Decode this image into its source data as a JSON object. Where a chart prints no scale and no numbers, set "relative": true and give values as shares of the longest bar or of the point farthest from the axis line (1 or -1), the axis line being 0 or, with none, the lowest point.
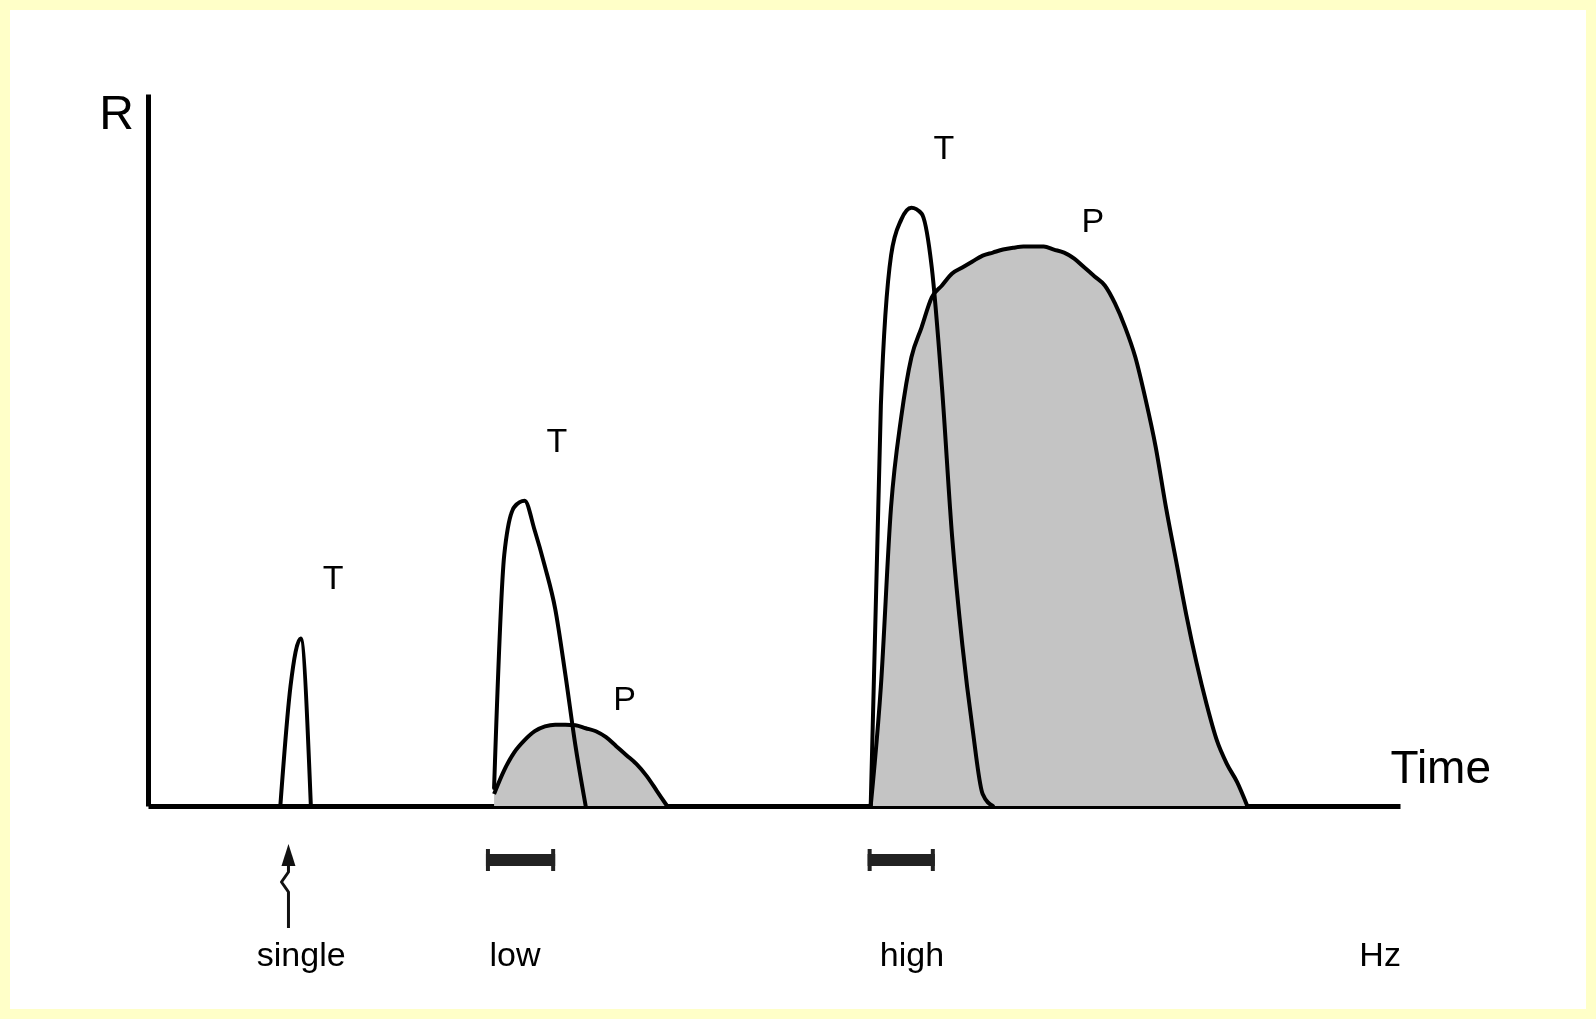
{
  "chart_data": {
    "type": "line",
    "relative": true,
    "xlabel": "Time",
    "ylabel": "R",
    "categories": [
      null,
      null,
      null,
      null,
      null,
      null,
      null,
      null,
      null,
      null,
      null,
      null,
      null,
      null,
      null,
      "single",
      null,
      null,
      null,
      null,
      null,
      null,
      null,
      null,
      null,
      null,
      null,
      null,
      null,
      null,
      null,
      null,
      null,
      null,
      null,
      null,
      "low",
      null,
      null,
      null,
      null,
      null,
      null,
      null,
      null,
      null,
      null,
      null,
      null,
      null,
      null,
      null,
      null,
      null,
      null,
      null,
      null,
      null,
      null,
      null,
      null,
      null,
      null,
      null,
      null,
      null,
      null,
      null,
      null,
      null,
      null,
      null,
      null,
      null,
      null,
      "high",
      null,
      null,
      null,
      null,
      null,
      null,
      null,
      null,
      null,
      null,
      null,
      null,
      null,
      null,
      null,
      null,
      null,
      null,
      null,
      null,
      null,
      null,
      null,
      null,
      null,
      null,
      null,
      null,
      null,
      null,
      null,
      null,
      null,
      null,
      null,
      null,
      null,
      null,
      null,
      null,
      null,
      null,
      null,
      null,
      null,
      "Hz",
      null,
      null
    ],
    "series": [
      {
        "name": "T",
        "type": "line",
        "color": "#000000",
        "values": [
          null,
          null,
          null,
          null,
          null,
          null,
          null,
          null,
          null,
          null,
          null,
          null,
          null,
          0,
          0.2,
          0.28,
          0,
          null,
          null,
          null,
          null,
          null,
          null,
          null,
          null,
          null,
          null,
          null,
          null,
          null,
          null,
          null,
          null,
          null,
          null,
          null,
          null,
          null,
          null,
          null,
          null,
          null,
          null,
          null,
          null,
          null,
          null,
          null,
          null,
          null,
          null,
          null,
          null,
          null,
          null,
          null,
          null,
          null,
          null,
          null,
          null,
          null,
          null,
          null,
          null,
          null,
          null,
          null,
          null,
          null,
          null,
          null,
          null,
          null,
          null,
          null,
          null,
          null,
          null,
          null,
          null,
          null,
          null,
          null,
          null,
          null,
          null,
          null,
          null,
          null,
          null,
          null,
          null,
          null,
          null,
          null,
          null,
          null,
          null,
          null,
          null,
          null,
          null,
          null,
          null,
          null,
          null,
          null,
          null,
          null,
          null,
          null,
          null,
          null,
          null,
          null,
          null,
          null,
          null,
          null,
          null,
          null,
          null,
          null
        ]
      },
      {
        "name": "P",
        "type": "area",
        "color": "#c4c4c4",
        "values": [
          null,
          null,
          null,
          null,
          null,
          null,
          null,
          null,
          null,
          null,
          null,
          null,
          null,
          null,
          null,
          null,
          null,
          null,
          null,
          null,
          null,
          null,
          null,
          null,
          null,
          null,
          null,
          null,
          null,
          null,
          null,
          null,
          null,
          null,
          0.02,
          0.06,
          0.09,
          0.11,
          0.125,
          0.133,
          0.136,
          0.136,
          0.135,
          0.13,
          0.125,
          0.115,
          0.1,
          0.085,
          0.07,
          0.05,
          0.025,
          0,
          null,
          null,
          null,
          null,
          null,
          null,
          null,
          null,
          null,
          null,
          null,
          null,
          null,
          null,
          null,
          null,
          null,
          null,
          null,
          null,
          null,
          null,
          null,
          null,
          null,
          null,
          null,
          null,
          null,
          null,
          null,
          null,
          null,
          null,
          null,
          null,
          null,
          null,
          null,
          null,
          null,
          null,
          null,
          null,
          null,
          null,
          null,
          null,
          null,
          null,
          null,
          null,
          null,
          null,
          null,
          null,
          null,
          null,
          null,
          null,
          null,
          null,
          null,
          null,
          null,
          null,
          null,
          null,
          null,
          null,
          null,
          null
        ]
      },
      {
        "name": "T",
        "type": "line",
        "color": "#000000",
        "values": [
          null,
          null,
          null,
          null,
          null,
          null,
          null,
          null,
          null,
          null,
          null,
          null,
          null,
          null,
          null,
          null,
          null,
          null,
          null,
          null,
          null,
          null,
          null,
          null,
          null,
          null,
          null,
          null,
          null,
          null,
          null,
          null,
          null,
          null,
          0.03,
          0.42,
          0.5,
          0.51,
          0.46,
          0.4,
          0.33,
          0.22,
          0.1,
          0,
          null,
          null,
          null,
          null,
          null,
          null,
          null,
          null,
          null,
          null,
          null,
          null,
          null,
          null,
          null,
          null,
          null,
          null,
          null,
          null,
          null,
          null,
          null,
          null,
          null,
          null,
          null,
          null,
          null,
          null,
          null,
          null,
          null,
          null,
          null,
          null,
          null,
          null,
          null,
          null,
          null,
          null,
          null,
          null,
          null,
          null,
          null,
          null,
          null,
          null,
          null,
          null,
          null,
          null,
          null,
          null,
          null,
          null,
          null,
          null,
          null,
          null,
          null,
          null,
          null,
          null,
          null,
          null,
          null,
          null,
          null,
          null,
          null,
          null,
          null,
          null,
          null,
          null,
          null,
          null
        ]
      },
      {
        "name": "P",
        "type": "area",
        "color": "#c4c4c4",
        "values": [
          null,
          null,
          null,
          null,
          null,
          null,
          null,
          null,
          null,
          null,
          null,
          null,
          null,
          null,
          null,
          null,
          null,
          null,
          null,
          null,
          null,
          null,
          null,
          null,
          null,
          null,
          null,
          null,
          null,
          null,
          null,
          null,
          null,
          null,
          null,
          null,
          null,
          null,
          null,
          null,
          null,
          null,
          null,
          null,
          null,
          null,
          null,
          null,
          null,
          null,
          null,
          null,
          null,
          null,
          null,
          null,
          null,
          null,
          null,
          null,
          null,
          null,
          null,
          null,
          null,
          null,
          null,
          null,
          null,
          null,
          null,
          0,
          0.2,
          0.5,
          0.65,
          0.75,
          0.8,
          0.85,
          0.87,
          0.89,
          0.9,
          0.91,
          0.92,
          0.925,
          0.93,
          0.933,
          0.935,
          0.935,
          0.935,
          0.93,
          0.925,
          0.915,
          0.9,
          0.885,
          0.87,
          0.84,
          0.8,
          0.75,
          0.68,
          0.6,
          0.5,
          0.41,
          0.32,
          0.24,
          0.17,
          0.11,
          0.07,
          0.04,
          0,
          null,
          null,
          null,
          null,
          null,
          null,
          null,
          null,
          null,
          null,
          null,
          null,
          null,
          null,
          null
        ]
      },
      {
        "name": "T",
        "type": "line",
        "color": "#000000",
        "values": [
          null,
          null,
          null,
          null,
          null,
          null,
          null,
          null,
          null,
          null,
          null,
          null,
          null,
          null,
          null,
          null,
          null,
          null,
          null,
          null,
          null,
          null,
          null,
          null,
          null,
          null,
          null,
          null,
          null,
          null,
          null,
          null,
          null,
          null,
          null,
          null,
          null,
          null,
          null,
          null,
          null,
          null,
          null,
          null,
          null,
          null,
          null,
          null,
          null,
          null,
          null,
          null,
          null,
          null,
          null,
          null,
          null,
          null,
          null,
          null,
          null,
          null,
          null,
          null,
          null,
          null,
          null,
          null,
          null,
          null,
          null,
          0,
          0.67,
          0.92,
          0.98,
          1,
          0.99,
          0.9,
          0.7,
          0.45,
          0.27,
          0.13,
          0.02,
          0,
          null,
          null,
          null,
          null,
          null,
          null,
          null,
          null,
          null,
          null,
          null,
          null,
          null,
          null,
          null,
          null,
          null,
          null,
          null,
          null,
          null,
          null,
          null,
          null,
          null,
          null,
          null,
          null,
          null,
          null,
          null,
          null,
          null,
          null,
          null,
          null,
          null,
          null,
          null,
          null
        ]
      }
    ]
  }
}
